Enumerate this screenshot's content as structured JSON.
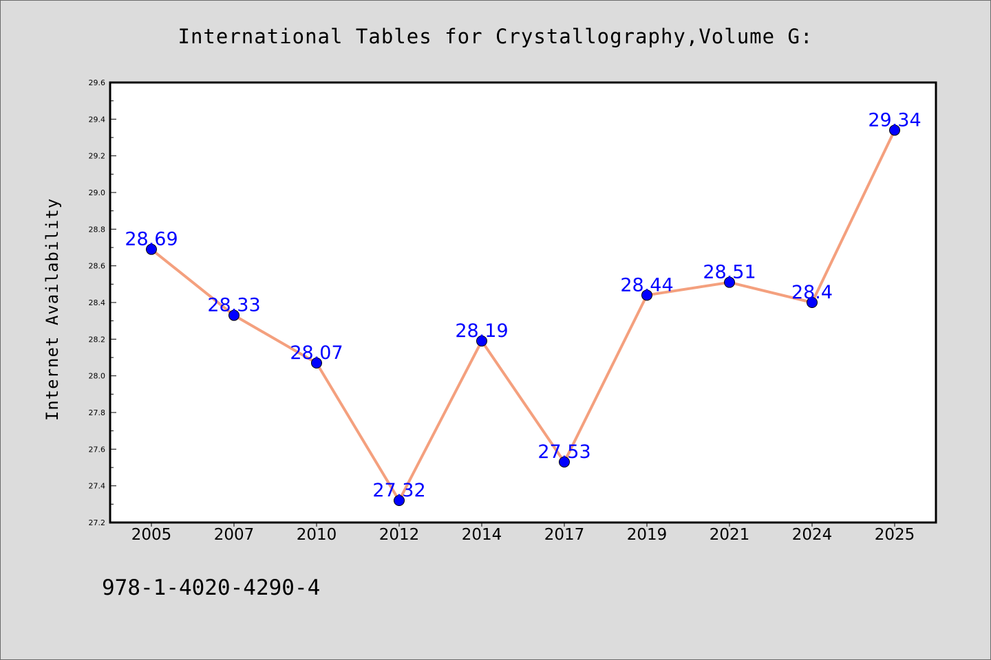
{
  "chart_data": {
    "type": "line",
    "title": "International Tables for Crystallography,Volume G:",
    "xlabel": "",
    "ylabel": "Internet Availability",
    "categories": [
      "2005",
      "2007",
      "2010",
      "2012",
      "2014",
      "2017",
      "2019",
      "2021",
      "2024",
      "2025"
    ],
    "series": [
      {
        "values": [
          28.69,
          28.33,
          28.07,
          27.32,
          28.19,
          27.53,
          28.44,
          28.51,
          28.4,
          29.34
        ],
        "labels": [
          "28.69",
          "28.33",
          "28.07",
          "27.32",
          "28.19",
          "27.53",
          "28.44",
          "28.51",
          "28.4",
          "29.34"
        ],
        "line_color": "#f4a07e",
        "marker_color": "#0000ff"
      }
    ],
    "ylim": [
      27.2,
      29.6
    ],
    "yticks": [
      "27.2",
      "27.4",
      "27.6",
      "27.8",
      "28.0",
      "28.2",
      "28.4",
      "28.6",
      "28.8",
      "29.0",
      "29.2",
      "29.4",
      "29.6"
    ],
    "grid": false,
    "legend": "none"
  },
  "footer": {
    "isbn": "978-1-4020-4290-4"
  },
  "colors": {
    "background": "#dcdcdc",
    "plot_background": "#ffffff",
    "line": "#f4a07e",
    "marker": "#0000ff",
    "data_label": "#0000ff"
  }
}
